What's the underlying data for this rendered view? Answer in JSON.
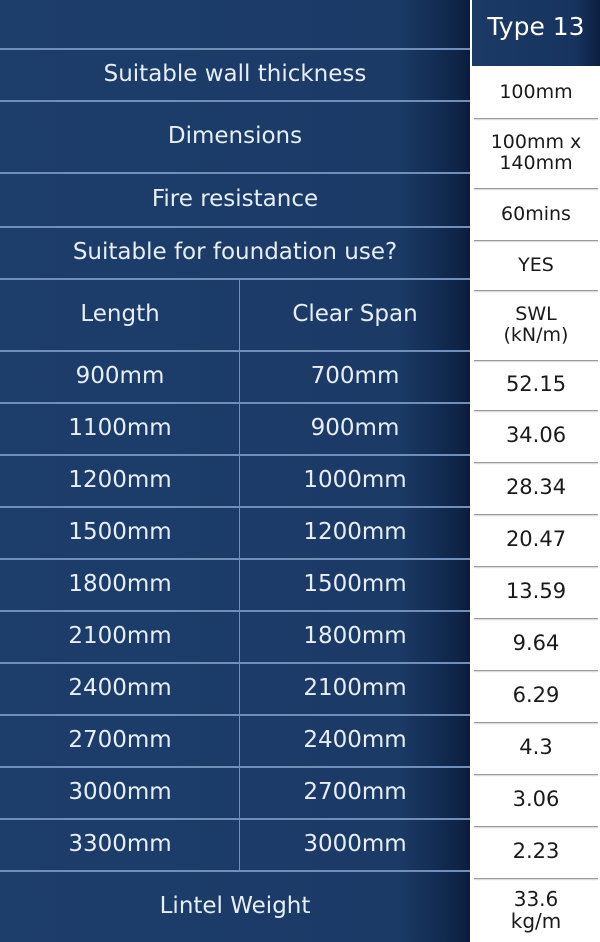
{
  "header": {
    "type_label": "Type 13"
  },
  "spec_rows": [
    {
      "label": "Suitable wall thickness",
      "value": "100mm"
    },
    {
      "label": "Dimensions",
      "value": "100mm x 140mm"
    },
    {
      "label": "Fire resistance",
      "value": "60mins"
    },
    {
      "label": "Suitable for foundation use?",
      "value": "YES"
    }
  ],
  "columns": {
    "length": "Length",
    "clear_span": "Clear Span",
    "swl": "SWL (kN/m)"
  },
  "rows": [
    {
      "length": "900mm",
      "clear_span": "700mm",
      "swl": "52.15"
    },
    {
      "length": "1100mm",
      "clear_span": "900mm",
      "swl": "34.06"
    },
    {
      "length": "1200mm",
      "clear_span": "1000mm",
      "swl": "28.34"
    },
    {
      "length": "1500mm",
      "clear_span": "1200mm",
      "swl": "20.47"
    },
    {
      "length": "1800mm",
      "clear_span": "1500mm",
      "swl": "13.59"
    },
    {
      "length": "2100mm",
      "clear_span": "1800mm",
      "swl": "9.64"
    },
    {
      "length": "2400mm",
      "clear_span": "2100mm",
      "swl": "6.29"
    },
    {
      "length": "2700mm",
      "clear_span": "2400mm",
      "swl": "4.3"
    },
    {
      "length": "3000mm",
      "clear_span": "2700mm",
      "swl": "3.06"
    },
    {
      "length": "3300mm",
      "clear_span": "3000mm",
      "swl": "2.23"
    }
  ],
  "footer": {
    "label": "Lintel Weight",
    "value": "33.6 kg/m"
  },
  "colors": {
    "navy": "#1b3a66",
    "divider": "#6f8fb8",
    "value_bg": "#ffffff"
  }
}
